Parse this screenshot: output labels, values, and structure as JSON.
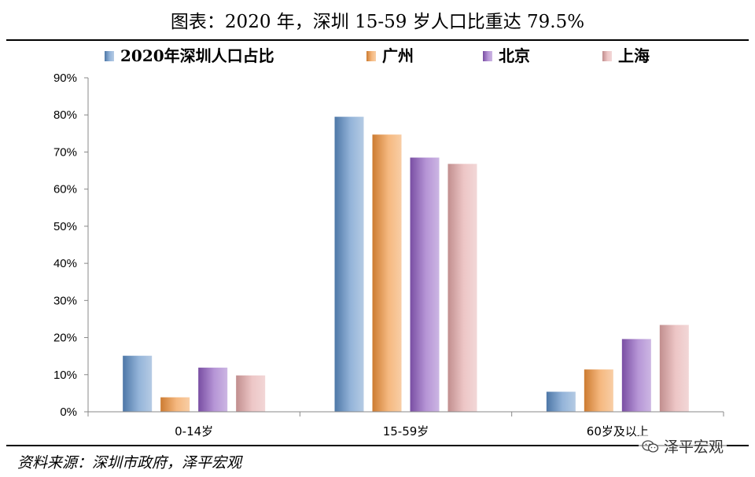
{
  "header": {
    "title": "图表：2020 年，深圳 15-59 岁人口比重达 79.5%"
  },
  "footer": {
    "source": "资料来源：深圳市政府，泽平宏观",
    "watermark_text": "泽平宏观",
    "watermark_icon": "wechat-icon"
  },
  "chart_data": {
    "type": "bar",
    "categories": [
      "0-14岁",
      "15-59岁",
      "60岁及以上"
    ],
    "series": [
      {
        "name": "2020年深圳人口占比",
        "values": [
          15.1,
          79.5,
          5.4
        ],
        "color": "#5b8cc4"
      },
      {
        "name": "广州",
        "values": [
          3.9,
          74.7,
          11.4
        ],
        "color": "#f0913a"
      },
      {
        "name": "北京",
        "values": [
          11.9,
          68.5,
          19.6
        ],
        "color": "#8e5cc0"
      },
      {
        "name": "上海",
        "values": [
          9.8,
          66.8,
          23.4
        ],
        "color": "#e3a7a7"
      }
    ],
    "y_ticks": [
      "0%",
      "10%",
      "20%",
      "30%",
      "40%",
      "50%",
      "60%",
      "70%",
      "80%",
      "90%"
    ],
    "ylim": [
      0,
      90
    ],
    "legend_position": "top"
  }
}
